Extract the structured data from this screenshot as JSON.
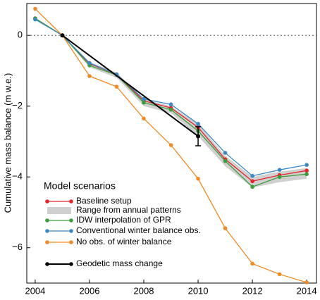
{
  "chart_data": {
    "type": "line",
    "ylabel": "Cumulative mass balance (m w.e.)",
    "legend_title": "Model scenarios",
    "legend": "lower left",
    "x": [
      2004,
      2005,
      2006,
      2007,
      2008,
      2009,
      2010,
      2011,
      2012,
      2013,
      2014
    ],
    "series": [
      {
        "name": "Baseline setup",
        "color": "#e3262b",
        "values": [
          0.48,
          0,
          -0.8,
          -1.1,
          -1.85,
          -2.05,
          -2.6,
          -3.5,
          -4.12,
          -3.95,
          -3.82
        ]
      },
      {
        "name": "IDW interpolation of GPR",
        "color": "#3a9e3a",
        "values": [
          0.48,
          0,
          -0.85,
          -1.12,
          -1.9,
          -2.1,
          -2.7,
          -3.55,
          -4.28,
          -4.0,
          -3.92
        ]
      },
      {
        "name": "Conventional winter balance obs.",
        "color": "#3b88c4",
        "values": [
          0.45,
          0,
          -0.78,
          -1.1,
          -1.8,
          -1.95,
          -2.5,
          -3.32,
          -3.97,
          -3.8,
          -3.66
        ]
      },
      {
        "name": "No obs. of winter balance",
        "color": "#f08a24",
        "values": [
          0.75,
          0,
          -1.15,
          -1.45,
          -2.35,
          -3.1,
          -4.05,
          -5.45,
          -6.45,
          -6.75,
          -6.98
        ]
      }
    ],
    "band": {
      "name": "Range from annual patterns",
      "color": "#d0d0d0",
      "x": [
        2005,
        2006,
        2007,
        2008,
        2009,
        2010,
        2011,
        2012,
        2013,
        2014
      ],
      "upper": [
        0,
        -0.75,
        -1.05,
        -1.8,
        -2.0,
        -2.5,
        -3.4,
        -4.0,
        -3.85,
        -3.75
      ],
      "lower": [
        0,
        -0.9,
        -1.2,
        -2.0,
        -2.2,
        -2.85,
        -3.7,
        -4.3,
        -4.15,
        -4.05
      ]
    },
    "geodetic": {
      "name": "Geodetic mass change",
      "color": "#000000",
      "x": [
        2005,
        2010
      ],
      "values": [
        0,
        -2.85
      ],
      "errors": [
        0,
        0.27
      ]
    },
    "xlim": [
      2003.69,
      2014.36
    ],
    "ylim": [
      -7,
      0.9
    ],
    "xticks": [
      2004,
      2006,
      2008,
      2010,
      2012,
      2014
    ],
    "yticks": [
      {
        "value": 0,
        "label": "0"
      },
      {
        "value": -2,
        "label": "−2"
      },
      {
        "value": -4,
        "label": "−4"
      },
      {
        "value": -6,
        "label": "−6"
      }
    ]
  }
}
